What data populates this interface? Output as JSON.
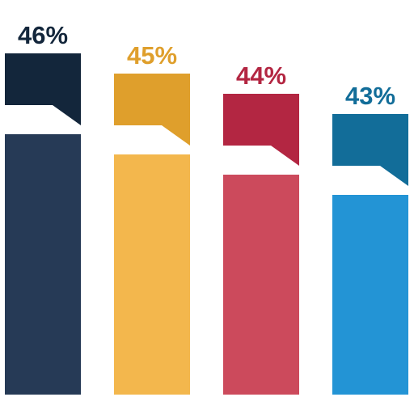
{
  "chart_data": {
    "type": "bar",
    "categories": [
      "",
      "",
      "",
      ""
    ],
    "values": [
      46,
      45,
      44,
      43
    ],
    "data_labels": [
      "46%",
      "45%",
      "44%",
      "43%"
    ],
    "unit": "%",
    "title": "",
    "xlabel": "",
    "ylabel": "",
    "grid": false,
    "legend": "none",
    "colors": [
      {
        "bar": "#263a56",
        "tab": "#13263b",
        "label": "#13263b"
      },
      {
        "bar": "#f3b74d",
        "tab": "#df9f2c",
        "label": "#df9f2c"
      },
      {
        "bar": "#cc4a5c",
        "tab": "#b32642",
        "label": "#b32642"
      },
      {
        "bar": "#2394d5",
        "tab": "#126d99",
        "label": "#126d99"
      }
    ]
  }
}
